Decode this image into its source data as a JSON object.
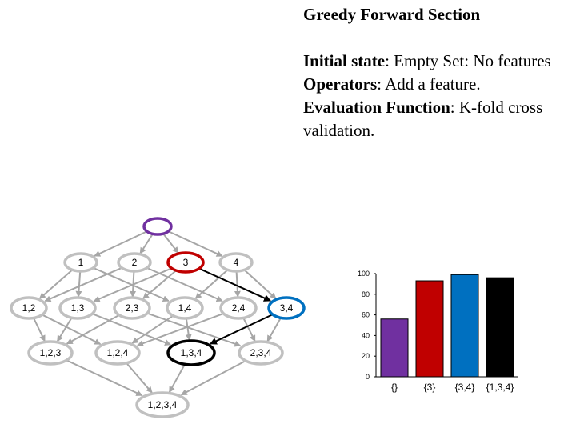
{
  "slide": {
    "title": "Greedy Forward Section",
    "initial_state_label": "Initial state",
    "initial_state_text": ": Empty Set: No features",
    "operators_label": "Operators",
    "operators_text": ": Add a feature.",
    "evaluation_label": "Evaluation Function",
    "evaluation_text": ": K-fold cross validation."
  },
  "lattice": {
    "nodes": [
      {
        "id": "empty",
        "label": "",
        "color": "#7030a0",
        "bold": true
      },
      {
        "id": "1",
        "label": "1",
        "color": "#c0c0c0"
      },
      {
        "id": "2",
        "label": "2",
        "color": "#c0c0c0"
      },
      {
        "id": "3",
        "label": "3",
        "color": "#c00000",
        "bold": true
      },
      {
        "id": "4",
        "label": "4",
        "color": "#c0c0c0"
      },
      {
        "id": "12",
        "label": "1,2",
        "color": "#c0c0c0"
      },
      {
        "id": "13",
        "label": "1,3",
        "color": "#c0c0c0"
      },
      {
        "id": "23",
        "label": "2,3",
        "color": "#c0c0c0"
      },
      {
        "id": "14",
        "label": "1,4",
        "color": "#c0c0c0"
      },
      {
        "id": "24",
        "label": "2,4",
        "color": "#c0c0c0"
      },
      {
        "id": "34",
        "label": "3,4",
        "color": "#0070c0",
        "bold": true
      },
      {
        "id": "123",
        "label": "1,2,3",
        "color": "#c0c0c0"
      },
      {
        "id": "124",
        "label": "1,2,4",
        "color": "#c0c0c0"
      },
      {
        "id": "134",
        "label": "1,3,4",
        "color": "#000000",
        "bold": true
      },
      {
        "id": "234",
        "label": "2,3,4",
        "color": "#c0c0c0"
      },
      {
        "id": "1234",
        "label": "1,2,3,4",
        "color": "#c0c0c0"
      }
    ]
  },
  "chart_data": {
    "type": "bar",
    "categories": [
      "{}",
      "{3}",
      "{3,4}",
      "{1,3,4}"
    ],
    "values": [
      56,
      93,
      99,
      96
    ],
    "colors": [
      "#7030a0",
      "#c00000",
      "#0070c0",
      "#000000"
    ],
    "ylim": [
      0,
      100
    ],
    "yticks": [
      "0",
      "20",
      "40",
      "60",
      "80",
      "100"
    ]
  }
}
